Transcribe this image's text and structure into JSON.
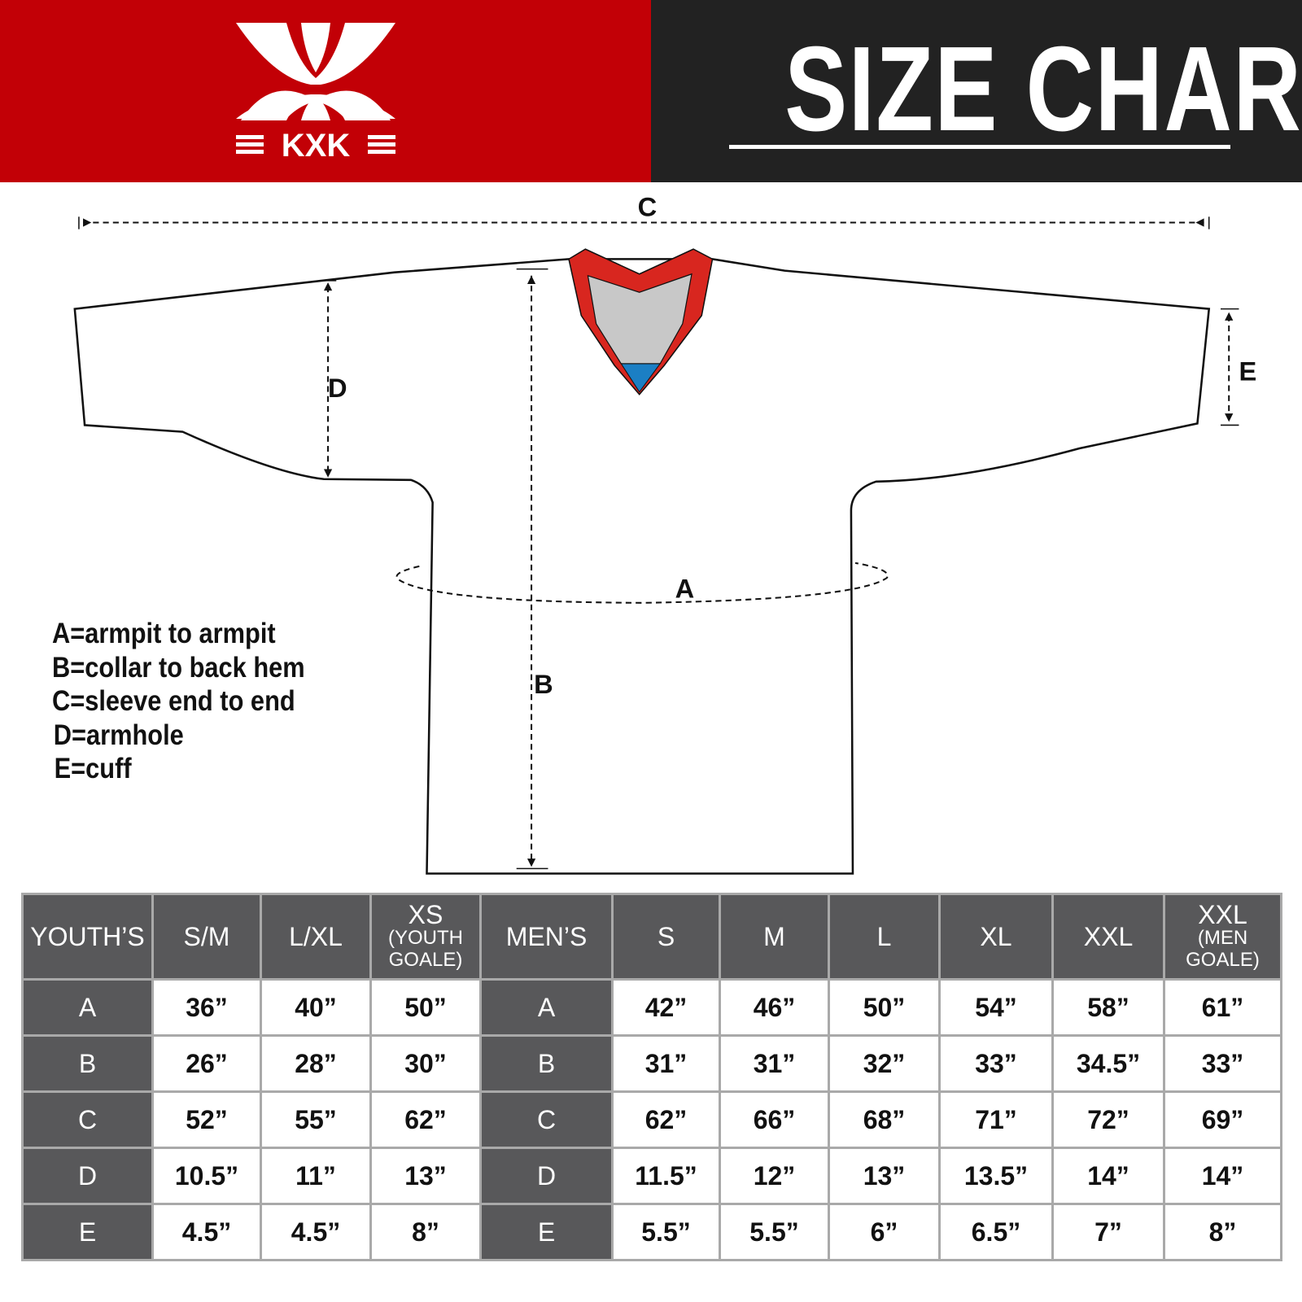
{
  "header": {
    "logo_text": "KXK",
    "title": "SIZE CHART",
    "brand_color": "#c20006",
    "dark_color": "#222222"
  },
  "diagram": {
    "labels": {
      "A": "A",
      "B": "B",
      "C": "C",
      "D": "D",
      "E": "E"
    },
    "collar_colors": {
      "trim": "#d8261f",
      "inner": "#c8c8c8",
      "insert": "#1b7fc4"
    }
  },
  "legend": [
    "A=armpit to armpit",
    "B=collar to back hem",
    "C=sleeve end to end",
    "D=armhole",
    "E=cuff"
  ],
  "table": {
    "headers": [
      {
        "main": "YOUTH’S"
      },
      {
        "main": "S/M"
      },
      {
        "main": "L/XL"
      },
      {
        "main": "XS",
        "sub1": "(YOUTH",
        "sub2": "GOALE)"
      },
      {
        "main": "MEN’S"
      },
      {
        "main": "S"
      },
      {
        "main": "M"
      },
      {
        "main": "L"
      },
      {
        "main": "XL"
      },
      {
        "main": "XXL"
      },
      {
        "main": "XXL",
        "sub1": "(MEN",
        "sub2": "GOALE)"
      }
    ],
    "rows": [
      {
        "label": "A",
        "youth": [
          "36”",
          "40”",
          "50”"
        ],
        "men_label": "A",
        "men": [
          "42”",
          "46”",
          "50”",
          "54”",
          "58”",
          "61”"
        ]
      },
      {
        "label": "B",
        "youth": [
          "26”",
          "28”",
          "30”"
        ],
        "men_label": "B",
        "men": [
          "31”",
          "31”",
          "32”",
          "33”",
          "34.5”",
          "33”"
        ]
      },
      {
        "label": "C",
        "youth": [
          "52”",
          "55”",
          "62”"
        ],
        "men_label": "C",
        "men": [
          "62”",
          "66”",
          "68”",
          "71”",
          "72”",
          "69”"
        ]
      },
      {
        "label": "D",
        "youth": [
          "10.5”",
          "11”",
          "13”"
        ],
        "men_label": "D",
        "men": [
          "11.5”",
          "12”",
          "13”",
          "13.5”",
          "14”",
          "14”"
        ]
      },
      {
        "label": "E",
        "youth": [
          "4.5”",
          "4.5”",
          "8”"
        ],
        "men_label": "E",
        "men": [
          "5.5”",
          "5.5”",
          "6”",
          "6.5”",
          "7”",
          "8”"
        ]
      }
    ]
  }
}
